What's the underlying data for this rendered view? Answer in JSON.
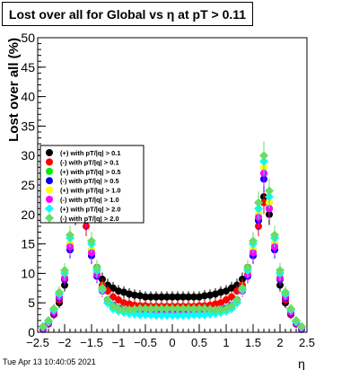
{
  "chart_data": {
    "type": "scatter",
    "title": "Lost over all for Global vs   η at pT > 0.11",
    "xlabel": "η",
    "ylabel": "Lost over all (%)",
    "xlim": [
      -2.5,
      2.5
    ],
    "ylim": [
      0,
      50
    ],
    "x_ticks": [
      -2.5,
      -2,
      -1.5,
      -1,
      -0.5,
      0,
      0.5,
      1,
      1.5,
      2,
      2.5
    ],
    "x_tick_labels": [
      "−2.5",
      "−2",
      "−1.5",
      "−1",
      "−0.5",
      "0",
      "0.5",
      "1",
      "1.5",
      "2",
      "2.5"
    ],
    "y_ticks": [
      0,
      5,
      10,
      15,
      20,
      25,
      30,
      35,
      40,
      45,
      50
    ],
    "y_tick_labels": [
      "0",
      "5",
      "10",
      "15",
      "20",
      "25",
      "30",
      "35",
      "40",
      "45",
      "50"
    ],
    "legend_position": "left-middle",
    "grid": false,
    "series": [
      {
        "name": "(+) with pT/|q| > 0.1",
        "color": "#000000",
        "marker": "circle",
        "x": [
          -2.4,
          -2.3,
          -2.2,
          -2.1,
          -2.0,
          -1.9,
          -1.8,
          -1.7,
          -1.6,
          -1.5,
          -1.4,
          -1.3,
          -1.2,
          -1.1,
          -1.0,
          -0.9,
          -0.8,
          -0.7,
          -0.6,
          -0.5,
          -0.4,
          -0.3,
          -0.2,
          -0.1,
          0.0,
          0.1,
          0.2,
          0.3,
          0.4,
          0.5,
          0.6,
          0.7,
          0.8,
          0.9,
          1.0,
          1.1,
          1.2,
          1.3,
          1.4,
          1.5,
          1.6,
          1.7,
          1.8,
          1.9,
          2.0,
          2.1,
          2.2,
          2.3,
          2.4
        ],
        "y": [
          0.5,
          1.5,
          3,
          5,
          8,
          14,
          20,
          23,
          19,
          14,
          11,
          9,
          8,
          7.5,
          7,
          6.8,
          6.5,
          6.3,
          6.2,
          6,
          6,
          6,
          6,
          6,
          6,
          6,
          6,
          6,
          6,
          6,
          6.2,
          6.3,
          6.5,
          6.8,
          7,
          7.5,
          8,
          9,
          11,
          14,
          19,
          23,
          20,
          14,
          8,
          5,
          3,
          1.5,
          0.5
        ]
      },
      {
        "name": "(-) with pT/|q| > 0.1",
        "color": "#ff0000",
        "marker": "circle",
        "x": [
          -2.4,
          -2.3,
          -2.2,
          -2.1,
          -2.0,
          -1.9,
          -1.8,
          -1.7,
          -1.6,
          -1.5,
          -1.4,
          -1.3,
          -1.2,
          -1.1,
          -1.0,
          -0.9,
          -0.8,
          -0.7,
          -0.6,
          -0.5,
          -0.4,
          -0.3,
          -0.2,
          -0.1,
          0.0,
          0.1,
          0.2,
          0.3,
          0.4,
          0.5,
          0.6,
          0.7,
          0.8,
          0.9,
          1.0,
          1.1,
          1.2,
          1.3,
          1.4,
          1.5,
          1.6,
          1.7,
          1.8,
          1.9,
          2.0,
          2.1,
          2.2,
          2.3,
          2.4
        ],
        "y": [
          0.6,
          1.4,
          3,
          5.5,
          9,
          15,
          21,
          22,
          18,
          13,
          10,
          8,
          7,
          6,
          5.5,
          5,
          4.8,
          4.6,
          4.5,
          4.5,
          4.4,
          4.4,
          4.4,
          4.4,
          4.4,
          4.4,
          4.4,
          4.4,
          4.4,
          4.5,
          4.5,
          4.6,
          4.8,
          5,
          5.5,
          6,
          7,
          8,
          10,
          13,
          18,
          22,
          21,
          15,
          9,
          5.5,
          3,
          1.4,
          0.6
        ]
      },
      {
        "name": "(+) with pT/|q| > 0.5",
        "color": "#00ee00",
        "marker": "circle",
        "x": [
          -2.4,
          -2.3,
          -2.2,
          -2.1,
          -2.0,
          -1.9,
          -1.8,
          -1.7,
          -1.6,
          -1.5,
          -1.4,
          -1.3,
          -1.2,
          -1.1,
          -1.0,
          -0.9,
          -0.8,
          -0.7,
          -0.6,
          -0.5,
          -0.4,
          -0.3,
          -0.2,
          -0.1,
          0.0,
          0.1,
          0.2,
          0.3,
          0.4,
          0.5,
          0.6,
          0.7,
          0.8,
          0.9,
          1.0,
          1.1,
          1.2,
          1.3,
          1.4,
          1.5,
          1.6,
          1.7,
          1.8,
          1.9,
          2.0,
          2.1,
          2.2,
          2.3,
          2.4
        ],
        "y": [
          0.7,
          1.6,
          3.5,
          6,
          9,
          15,
          22,
          24,
          20,
          14,
          10,
          7,
          5.5,
          4.5,
          4,
          3.8,
          3.6,
          3.5,
          3.5,
          3.4,
          3.4,
          3.4,
          3.3,
          3.3,
          3.3,
          3.3,
          3.3,
          3.4,
          3.4,
          3.4,
          3.5,
          3.5,
          3.6,
          3.8,
          4,
          4.5,
          5.5,
          7,
          10,
          14,
          20,
          27,
          22,
          15,
          9,
          6,
          3.5,
          1.6,
          0.7
        ]
      },
      {
        "name": "(-) with pT/|q| > 0.5",
        "color": "#0000ff",
        "marker": "circle",
        "x": [
          -2.4,
          -2.3,
          -2.2,
          -2.1,
          -2.0,
          -1.9,
          -1.8,
          -1.7,
          -1.6,
          -1.5,
          -1.4,
          -1.3,
          -1.2,
          -1.1,
          -1.0,
          -0.9,
          -0.8,
          -0.7,
          -0.6,
          -0.5,
          -0.4,
          -0.3,
          -0.2,
          -0.1,
          0.0,
          0.1,
          0.2,
          0.3,
          0.4,
          0.5,
          0.6,
          0.7,
          0.8,
          0.9,
          1.0,
          1.1,
          1.2,
          1.3,
          1.4,
          1.5,
          1.6,
          1.7,
          1.8,
          1.9,
          2.0,
          2.1,
          2.2,
          2.3,
          2.4
        ],
        "y": [
          0.6,
          1.5,
          3.2,
          5.8,
          9,
          14,
          21,
          23,
          19,
          13,
          9.5,
          7,
          5.5,
          4.6,
          4.1,
          3.8,
          3.6,
          3.5,
          3.4,
          3.4,
          3.3,
          3.3,
          3.3,
          3.3,
          3.3,
          3.3,
          3.3,
          3.3,
          3.3,
          3.4,
          3.4,
          3.5,
          3.6,
          3.8,
          4.1,
          4.6,
          5.5,
          7,
          9.5,
          13,
          19,
          26,
          21,
          14,
          9,
          5.8,
          3.2,
          1.5,
          0.6
        ]
      },
      {
        "name": "(+) with pT/|q| > 1.0",
        "color": "#ffff00",
        "marker": "circle",
        "x": [
          -2.4,
          -2.3,
          -2.2,
          -2.1,
          -2.0,
          -1.9,
          -1.8,
          -1.7,
          -1.6,
          -1.5,
          -1.4,
          -1.3,
          -1.2,
          -1.1,
          -1.0,
          -0.9,
          -0.8,
          -0.7,
          -0.6,
          -0.5,
          -0.4,
          -0.3,
          -0.2,
          -0.1,
          0.0,
          0.1,
          0.2,
          0.3,
          0.4,
          0.5,
          0.6,
          0.7,
          0.8,
          0.9,
          1.0,
          1.1,
          1.2,
          1.3,
          1.4,
          1.5,
          1.6,
          1.7,
          1.8,
          1.9,
          2.0,
          2.1,
          2.2,
          2.3,
          2.4
        ],
        "y": [
          0.8,
          1.7,
          3.6,
          6.2,
          9.5,
          15,
          22,
          24,
          20,
          14,
          10,
          7,
          5.2,
          4.2,
          3.8,
          3.5,
          3.4,
          3.3,
          3.2,
          3.2,
          3.2,
          3.1,
          3.1,
          3.1,
          3.1,
          3.1,
          3.1,
          3.1,
          3.2,
          3.2,
          3.2,
          3.3,
          3.4,
          3.5,
          3.8,
          4.2,
          5.2,
          7,
          10,
          14,
          20,
          28,
          22,
          15,
          9.5,
          6.2,
          3.6,
          1.7,
          0.8
        ]
      },
      {
        "name": "(-) with pT/|q| > 1.0",
        "color": "#ff00ff",
        "marker": "circle",
        "x": [
          -2.4,
          -2.3,
          -2.2,
          -2.1,
          -2.0,
          -1.9,
          -1.8,
          -1.7,
          -1.6,
          -1.5,
          -1.4,
          -1.3,
          -1.2,
          -1.1,
          -1.0,
          -0.9,
          -0.8,
          -0.7,
          -0.6,
          -0.5,
          -0.4,
          -0.3,
          -0.2,
          -0.1,
          0.0,
          0.1,
          0.2,
          0.3,
          0.4,
          0.5,
          0.6,
          0.7,
          0.8,
          0.9,
          1.0,
          1.1,
          1.2,
          1.3,
          1.4,
          1.5,
          1.6,
          1.7,
          1.8,
          1.9,
          2.0,
          2.1,
          2.2,
          2.3,
          2.4
        ],
        "y": [
          0.7,
          1.6,
          3.4,
          6,
          9.2,
          14.5,
          21,
          23.5,
          19.5,
          13.5,
          9.8,
          7,
          5.3,
          4.3,
          3.9,
          3.6,
          3.4,
          3.3,
          3.2,
          3.2,
          3.1,
          3.1,
          3.1,
          3.1,
          3.1,
          3.1,
          3.1,
          3.1,
          3.1,
          3.2,
          3.2,
          3.3,
          3.4,
          3.6,
          3.9,
          4.3,
          5.3,
          7,
          9.8,
          13.5,
          19.5,
          27,
          21,
          14.5,
          9.2,
          6,
          3.4,
          1.6,
          0.7
        ]
      },
      {
        "name": "(+) with pT/|q| > 2.0",
        "color": "#00ffff",
        "marker": "diamond",
        "x": [
          -2.4,
          -2.3,
          -2.2,
          -2.1,
          -2.0,
          -1.9,
          -1.8,
          -1.7,
          -1.6,
          -1.5,
          -1.4,
          -1.3,
          -1.2,
          -1.1,
          -1.0,
          -0.9,
          -0.8,
          -0.7,
          -0.6,
          -0.5,
          -0.4,
          -0.3,
          -0.2,
          -0.1,
          0.0,
          0.1,
          0.2,
          0.3,
          0.4,
          0.5,
          0.6,
          0.7,
          0.8,
          0.9,
          1.0,
          1.1,
          1.2,
          1.3,
          1.4,
          1.5,
          1.6,
          1.7,
          1.8,
          1.9,
          2.0,
          2.1,
          2.2,
          2.3,
          2.4
        ],
        "y": [
          0.9,
          1.8,
          3.8,
          6.5,
          10,
          16,
          23,
          25,
          21,
          15,
          10.5,
          7.2,
          5,
          4,
          3.6,
          3.4,
          3.2,
          3.1,
          3,
          3,
          3,
          2.9,
          2.9,
          2.9,
          2.9,
          2.9,
          2.9,
          2.9,
          3,
          3,
          3,
          3.1,
          3.2,
          3.4,
          3.6,
          4,
          5,
          7.2,
          10.5,
          15,
          21,
          29,
          23,
          16,
          10,
          6.5,
          3.8,
          1.8,
          0.9
        ]
      },
      {
        "name": "(-) with pT/|q| > 2.0",
        "color": "#66dd66",
        "marker": "diamond",
        "x": [
          -2.4,
          -2.3,
          -2.2,
          -2.1,
          -2.0,
          -1.9,
          -1.8,
          -1.7,
          -1.6,
          -1.5,
          -1.4,
          -1.3,
          -1.2,
          -1.1,
          -1.0,
          -0.9,
          -0.8,
          -0.7,
          -0.6,
          -0.5,
          -0.4,
          -0.3,
          -0.2,
          -0.1,
          0.0,
          0.1,
          0.2,
          0.3,
          0.4,
          0.5,
          0.6,
          0.7,
          0.8,
          0.9,
          1.0,
          1.1,
          1.2,
          1.3,
          1.4,
          1.5,
          1.6,
          1.7,
          1.8,
          1.9,
          2.0,
          2.1,
          2.2,
          2.3,
          2.4
        ],
        "y": [
          1,
          2,
          4,
          6.8,
          10.5,
          16.5,
          24,
          26,
          22,
          15.5,
          11,
          7.5,
          5.5,
          4.5,
          4,
          3.8,
          3.8,
          3.9,
          4,
          4,
          4,
          4,
          4,
          4,
          4,
          4,
          4,
          4,
          4,
          4,
          4,
          3.9,
          3.8,
          3.8,
          4,
          4.5,
          5.5,
          7.5,
          11,
          15.5,
          22,
          30,
          24,
          16.5,
          10.5,
          6.8,
          4,
          2,
          1
        ]
      }
    ]
  },
  "footer": {
    "timestamp": "Tue Apr 13 10:40:05 2021"
  }
}
